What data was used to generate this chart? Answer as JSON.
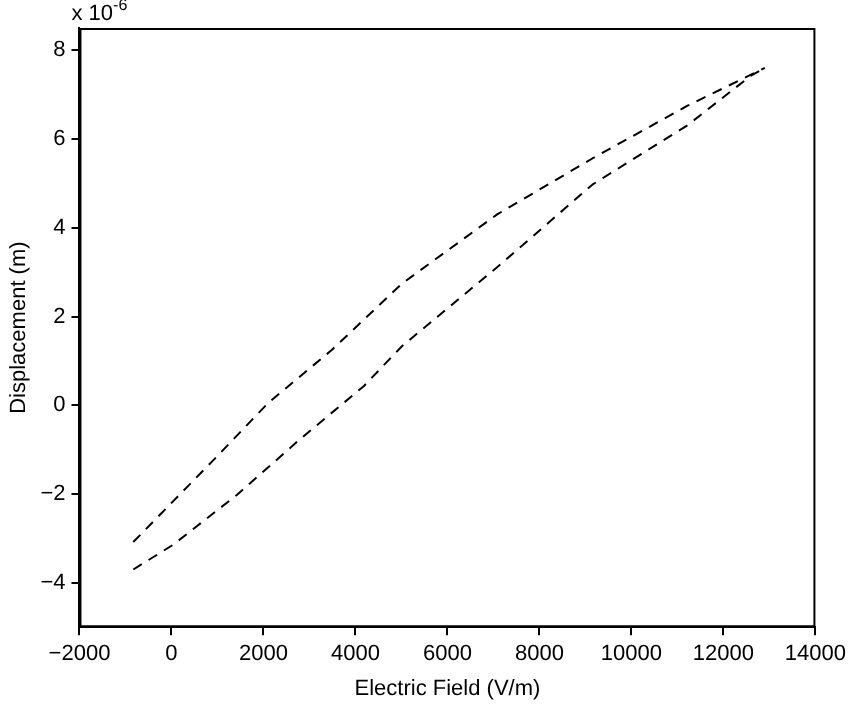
{
  "chart_data": {
    "type": "line",
    "xlabel": "Electric Field (V/m)",
    "ylabel": "Displacement (m)",
    "annotations": [
      "x 10$^{-6}$"
    ],
    "xlim": [
      -2000,
      14000
    ],
    "xticks": [
      -2000,
      0,
      2000,
      4000,
      6000,
      8000,
      10000,
      12000,
      14000
    ],
    "ylim": [
      -5,
      8.5
    ],
    "yticks": [
      -4,
      -2,
      0,
      2,
      4,
      6,
      8
    ],
    "grid": false,
    "legend": false,
    "marker": "none",
    "line_style": "dashed",
    "series": [
      {
        "color": "#000000",
        "x": [
          -830,
          40,
          1420,
          2800,
          4180,
          5010,
          7080,
          9150,
          11220,
          12590,
          12900
        ],
        "values": [
          -3.7,
          -3.14,
          -2.02,
          -0.76,
          0.43,
          1.33,
          3.11,
          4.97,
          6.31,
          7.42,
          7.6
        ]
      },
      {
        "color": "#000000",
        "x": [
          -830,
          870,
          2110,
          3490,
          5010,
          7080,
          9150,
          11220,
          12900
        ],
        "values": [
          -3.08,
          -1.28,
          0.06,
          1.25,
          2.74,
          4.3,
          5.56,
          6.75,
          7.6
        ]
      }
    ]
  }
}
